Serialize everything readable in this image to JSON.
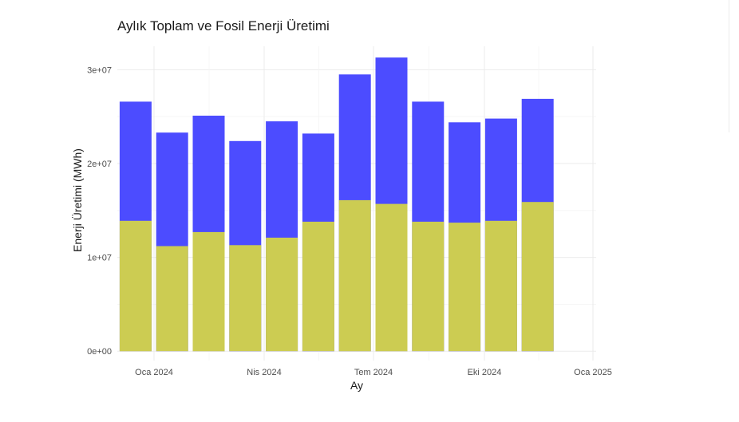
{
  "chart_data": {
    "type": "bar",
    "title": "Aylık Toplam ve Fosil Enerji Üretimi",
    "xlabel": "Ay",
    "ylabel": "Enerji Üretimi (MWh)",
    "x_tick_labels": [
      "Oca 2024",
      "Nis 2024",
      "Tem 2024",
      "Eki 2024",
      "Oca 2025"
    ],
    "y_tick_labels": [
      "0e+00",
      "1e+07",
      "2e+07",
      "3e+07"
    ],
    "y_ticks": [
      0,
      10000000,
      20000000,
      30000000
    ],
    "ylim": [
      -1000000,
      32500000
    ],
    "categories": [
      "2024-01",
      "2024-02",
      "2024-03",
      "2024-04",
      "2024-05",
      "2024-06",
      "2024-07",
      "2024-08",
      "2024-09",
      "2024-10",
      "2024-11",
      "2024-12"
    ],
    "series": [
      {
        "color": "#4c4cff",
        "values": [
          26600000,
          23300000,
          25100000,
          22400000,
          24500000,
          23200000,
          29500000,
          31300000,
          26600000,
          24400000,
          24800000,
          26900000
        ]
      },
      {
        "color": "#cccc52",
        "values": [
          13900000,
          11200000,
          12700000,
          11300000,
          12100000,
          13800000,
          16100000,
          15700000,
          13800000,
          13700000,
          13900000,
          15900000
        ]
      }
    ],
    "grid": true,
    "legend": "right (cropped)"
  }
}
